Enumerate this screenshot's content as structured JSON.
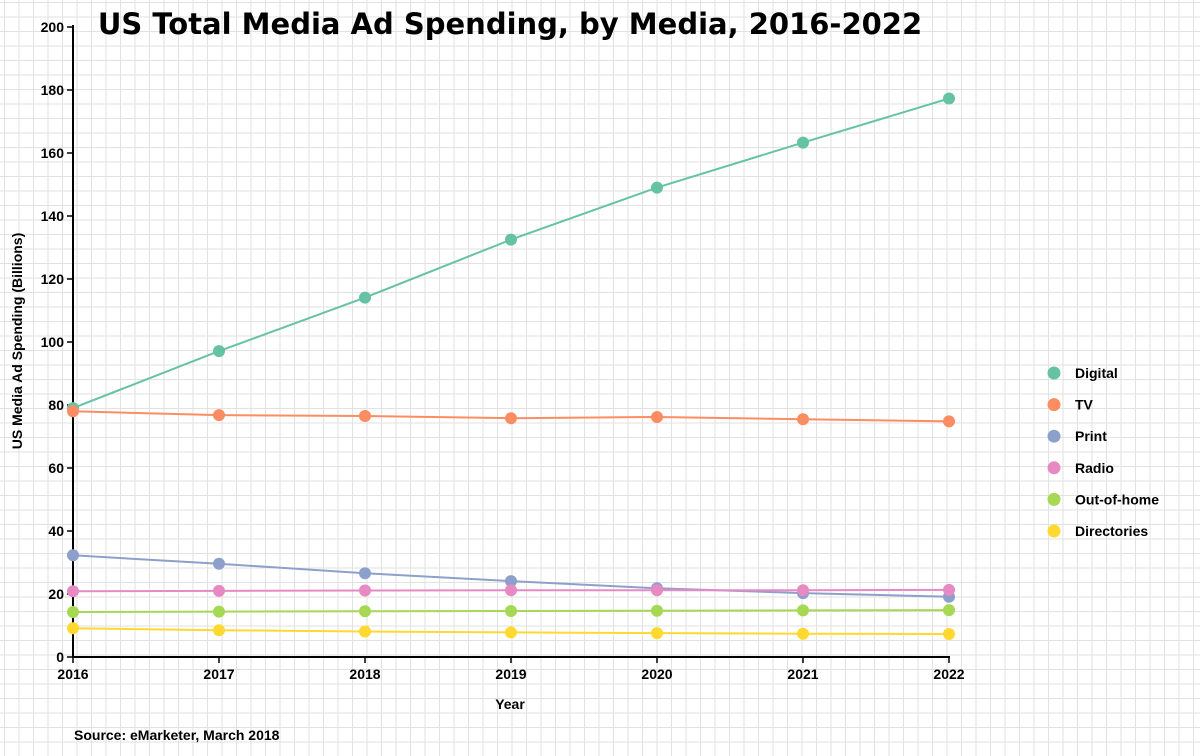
{
  "chart_data": {
    "type": "line",
    "title": "US Total Media Ad Spending, by Media, 2016-2022",
    "xlabel": "Year",
    "ylabel": "US Media Ad Spending (Billions)",
    "source": "Source: eMarketer, March 2018",
    "categories": [
      "2016",
      "2017",
      "2018",
      "2019",
      "2020",
      "2021",
      "2022"
    ],
    "ylim": [
      0,
      200
    ],
    "yticks": [
      0,
      20,
      40,
      60,
      80,
      100,
      120,
      140,
      160,
      180,
      200
    ],
    "grid": true,
    "legend_position": "right",
    "series": [
      {
        "name": "Digital",
        "color": "#66c2a5",
        "values": [
          79.0,
          97.1,
          114.1,
          132.5,
          149.0,
          163.3,
          177.3
        ]
      },
      {
        "name": "TV",
        "color": "#fc8d62",
        "values": [
          78.0,
          76.8,
          76.5,
          75.8,
          76.2,
          75.5,
          74.8
        ]
      },
      {
        "name": "Print",
        "color": "#8da0cb",
        "values": [
          32.3,
          29.6,
          26.6,
          24.1,
          21.8,
          20.3,
          19.1
        ]
      },
      {
        "name": "Radio",
        "color": "#e78ac3",
        "values": [
          20.9,
          21.0,
          21.1,
          21.2,
          21.2,
          21.2,
          21.3
        ]
      },
      {
        "name": "Out-of-home",
        "color": "#a6d854",
        "values": [
          14.3,
          14.4,
          14.5,
          14.6,
          14.7,
          14.8,
          14.9
        ]
      },
      {
        "name": "Directories",
        "color": "#ffd92f",
        "values": [
          9.1,
          8.5,
          8.1,
          7.8,
          7.6,
          7.4,
          7.3
        ]
      }
    ]
  }
}
